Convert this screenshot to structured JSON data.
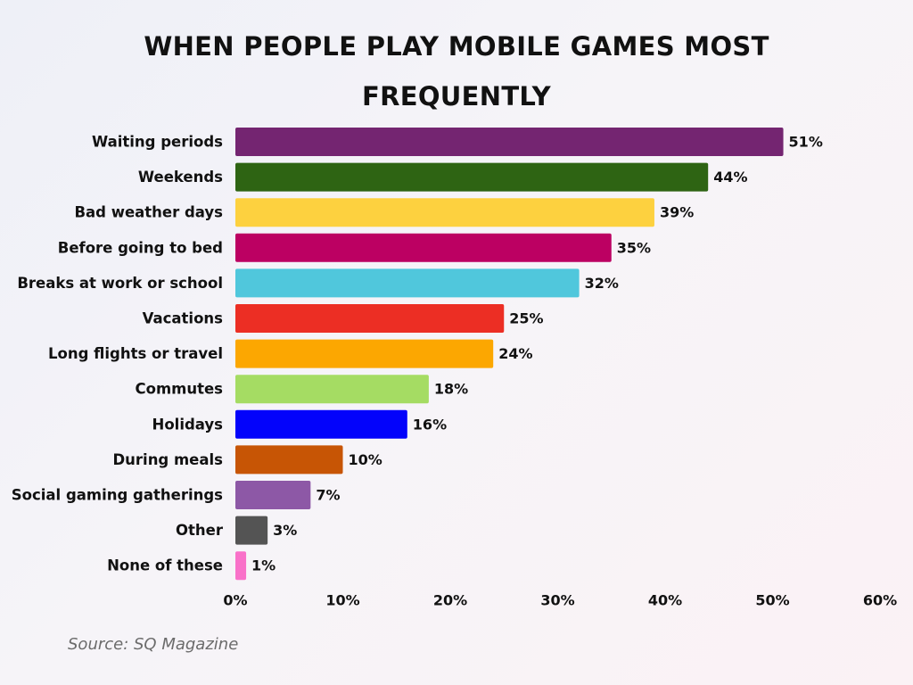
{
  "chart_data": {
    "type": "bar",
    "orientation": "horizontal",
    "title_lines": [
      "WHEN PEOPLE PLAY MOBILE GAMES MOST",
      "FREQUENTLY"
    ],
    "categories": [
      "Waiting periods",
      "Weekends",
      "Bad weather days",
      "Before going to bed",
      "Breaks at work or school",
      "Vacations",
      "Long flights or travel",
      "Commutes",
      "Holidays",
      "During meals",
      "Social gaming gatherings",
      "Other",
      "None of these"
    ],
    "values": [
      51,
      44,
      39,
      35,
      32,
      25,
      24,
      18,
      16,
      10,
      7,
      3,
      1
    ],
    "value_labels": [
      "51%",
      "44%",
      "39%",
      "35%",
      "32%",
      "25%",
      "24%",
      "18%",
      "16%",
      "10%",
      "7%",
      "3%",
      "1%"
    ],
    "colors": [
      "#742571",
      "#2e6413",
      "#fdd13f",
      "#bc0062",
      "#50c7dc",
      "#ec2e24",
      "#fca701",
      "#a5dc63",
      "#0303fb",
      "#c75505",
      "#8d58a6",
      "#545454",
      "#f971c9"
    ],
    "xlim": [
      0,
      60
    ],
    "xticks": [
      0,
      10,
      20,
      30,
      40,
      50,
      60
    ],
    "xtick_labels": [
      "0%",
      "10%",
      "20%",
      "30%",
      "40%",
      "50%",
      "60%"
    ],
    "xlabel": "",
    "ylabel": "",
    "grid": false,
    "legend": "none"
  },
  "source": "Source: SQ Magazine"
}
